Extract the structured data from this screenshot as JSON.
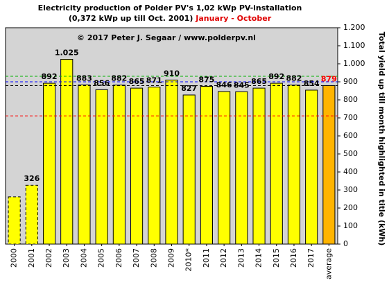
{
  "chart_data": {
    "type": "bar",
    "title": "Electricity production  of Polder PV's 1,02 kWp PV-installation",
    "subtitle": "(0,372 kWp up till Oct. 2001)",
    "subtitle_highlight": "January - October",
    "annotation": "© 2017 Peter J. Segaar / www.polderpv.nl",
    "y_axis_label": "Total yield up till month highlighted in title (kWh)",
    "categories": [
      "2000",
      "2001",
      "2002",
      "2003",
      "2004",
      "2005",
      "2006",
      "2007",
      "2008",
      "2009",
      "2010*",
      "2011",
      "2012",
      "2013",
      "2014",
      "2015",
      "2016",
      "2017",
      "average"
    ],
    "values": [
      262,
      326,
      892,
      1025,
      883,
      856,
      882,
      865,
      871,
      910,
      827,
      875,
      846,
      845,
      865,
      892,
      882,
      854,
      879
    ],
    "value_labels": [
      null,
      "326",
      "892",
      "1.025",
      "883",
      "856",
      "882",
      "865",
      "871",
      "910",
      "827",
      "875",
      "846",
      "845",
      "865",
      "892",
      "882",
      "854",
      "879"
    ],
    "colors": [
      "#ffff00",
      "#ffff00",
      "#ffff00",
      "#ffff00",
      "#ffff00",
      "#ffff00",
      "#ffff00",
      "#ffff00",
      "#ffff00",
      "#ffff00",
      "#ffff00",
      "#ffff00",
      "#ffff00",
      "#ffff00",
      "#ffff00",
      "#ffff00",
      "#ffff00",
      "#ffff00",
      "#ffb400"
    ],
    "dashed": [
      true,
      true,
      false,
      false,
      false,
      false,
      false,
      false,
      false,
      false,
      false,
      false,
      false,
      false,
      false,
      false,
      false,
      false,
      false
    ],
    "label_colors": [
      "#000000",
      "#000000",
      "#000000",
      "#000000",
      "#000000",
      "#000000",
      "#000000",
      "#000000",
      "#000000",
      "#000000",
      "#000000",
      "#000000",
      "#000000",
      "#000000",
      "#000000",
      "#000000",
      "#000000",
      "#000000",
      "#ff0000"
    ],
    "reference_lines": [
      {
        "value": 931,
        "color": "#00b000"
      },
      {
        "value": 900,
        "color": "#0000ff"
      },
      {
        "value": 879,
        "color": "#000000"
      },
      {
        "value": 711,
        "color": "#ff0000"
      }
    ],
    "ylim": [
      0,
      1200
    ],
    "yticks": [
      0,
      100,
      200,
      300,
      400,
      500,
      600,
      700,
      800,
      900,
      {
        "value": 1000,
        "label": "1.000"
      },
      {
        "value": 1100,
        "label": "1.100"
      },
      {
        "value": 1200,
        "label": "1.200"
      }
    ],
    "y_axis_side": "right",
    "grid": false
  }
}
